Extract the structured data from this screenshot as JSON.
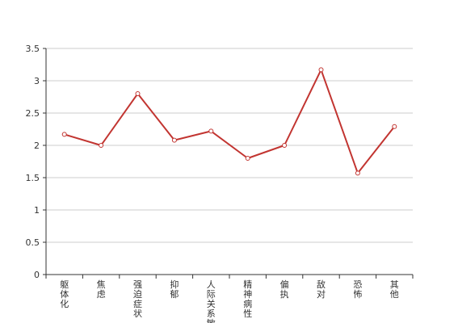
{
  "chart_data": {
    "type": "line",
    "title": "",
    "xlabel": "",
    "ylabel": "",
    "ylim": [
      0,
      3.5
    ],
    "yticks": [
      "0",
      "0.5",
      "1",
      "1.5",
      "2",
      "2.5",
      "3",
      "3.5"
    ],
    "grid": true,
    "legend": "none",
    "categories": [
      "躯体化",
      "焦虑",
      "强迫症状",
      "抑郁",
      "人际关系敏感",
      "精神病性",
      "偏执",
      "敌对",
      "恐怖",
      "其他"
    ],
    "series": [
      {
        "values": [
          2.17,
          2.0,
          2.8,
          2.08,
          2.22,
          1.8,
          2.0,
          3.17,
          1.57,
          2.29
        ]
      }
    ],
    "colors": {
      "line": "#c23531",
      "grid": "#cccccc",
      "axis": "#333333"
    }
  }
}
